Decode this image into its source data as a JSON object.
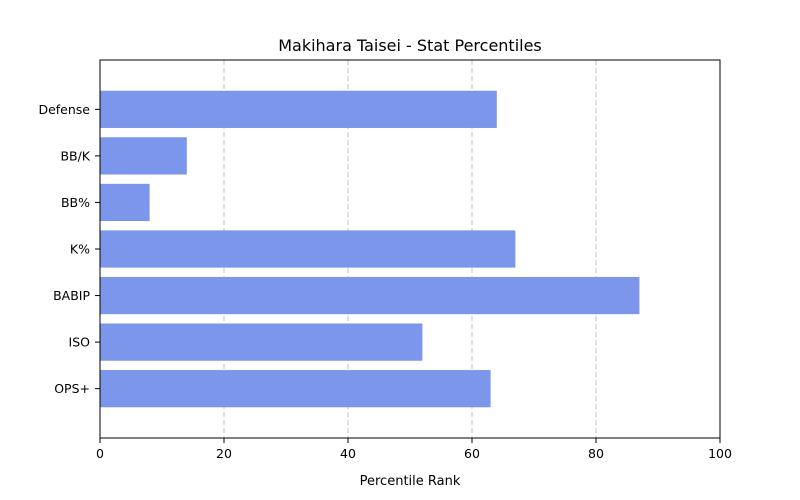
{
  "chart_data": {
    "type": "bar",
    "orientation": "horizontal",
    "title": "Makihara Taisei - Stat Percentiles",
    "xlabel": "Percentile Rank",
    "ylabel": "",
    "xlim": [
      0,
      100
    ],
    "xticks": [
      0,
      20,
      40,
      60,
      80,
      100
    ],
    "grid": "x-dashed",
    "bar_color": "#7b96ea",
    "categories": [
      "Defense",
      "BB/K",
      "BB%",
      "K%",
      "BABIP",
      "ISO",
      "OPS+"
    ],
    "values": [
      64,
      14,
      8,
      67,
      87,
      52,
      63
    ]
  }
}
